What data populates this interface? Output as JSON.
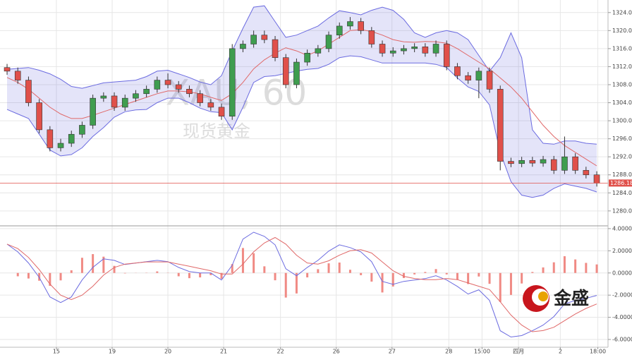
{
  "chart_data": [
    {
      "type": "candlestick",
      "watermark_symbol": "XAU, 60",
      "watermark_name": "现货黄金",
      "x": [
        0,
        1,
        2,
        3,
        4,
        5,
        6,
        7,
        8,
        9,
        10,
        11,
        12,
        13,
        14,
        15,
        16,
        17,
        18,
        19,
        20,
        21,
        22,
        23,
        24,
        25,
        26,
        27,
        28,
        29,
        30,
        31,
        32,
        33,
        34,
        35,
        36,
        37,
        38,
        39,
        40,
        41,
        42,
        43,
        44,
        45,
        46,
        47,
        48,
        49,
        50,
        51,
        52,
        53,
        54,
        55
      ],
      "open": [
        1311.8,
        1311,
        1309,
        1304,
        1298,
        1294,
        1295,
        1297,
        1299,
        1305,
        1305.5,
        1303,
        1305,
        1306,
        1307,
        1309,
        1308,
        1307,
        1306,
        1304,
        1303,
        1301,
        1316,
        1317,
        1319,
        1318,
        1314,
        1308,
        1313,
        1315,
        1316,
        1319,
        1321,
        1322,
        1320,
        1317,
        1315,
        1315.5,
        1316,
        1316.4,
        1315,
        1317,
        1312,
        1310,
        1309,
        1311,
        1307,
        1291,
        1290.5,
        1291.2,
        1290.6,
        1291.4,
        1289,
        1292,
        1289,
        1288
      ],
      "high": [
        1312.6,
        1311.8,
        1309.8,
        1304.8,
        1298.8,
        1296,
        1297.8,
        1299.8,
        1305.8,
        1306.3,
        1306.3,
        1305.8,
        1306.8,
        1307.8,
        1309.8,
        1310.5,
        1308.8,
        1307.8,
        1306.8,
        1304.8,
        1303.8,
        1317,
        1317.8,
        1320,
        1320,
        1318.8,
        1314.8,
        1313.8,
        1315.8,
        1316.8,
        1319.8,
        1321.8,
        1323,
        1322.8,
        1320.8,
        1317.8,
        1316.3,
        1316.8,
        1317.2,
        1317.2,
        1317.8,
        1317.8,
        1312.8,
        1310.8,
        1311.8,
        1311.8,
        1307.8,
        1291.8,
        1292,
        1292,
        1292.2,
        1292.2,
        1296.5,
        1292.8,
        1289.8,
        1288.8
      ],
      "low": [
        1310.2,
        1308.2,
        1303.2,
        1297.2,
        1293.2,
        1293.2,
        1294.2,
        1296.2,
        1298.2,
        1304.2,
        1302.2,
        1302.2,
        1304.2,
        1305.2,
        1306.2,
        1307.2,
        1306.2,
        1305.2,
        1303.2,
        1302.2,
        1300.2,
        1300.2,
        1315.2,
        1316.2,
        1317.2,
        1313.2,
        1307.2,
        1307.2,
        1312.2,
        1314.2,
        1315.2,
        1318.2,
        1320.2,
        1319.2,
        1316.2,
        1314.2,
        1314.2,
        1314.7,
        1315.2,
        1314.2,
        1314.2,
        1311.2,
        1309.2,
        1308.2,
        1305,
        1306.2,
        1289,
        1289.7,
        1289.7,
        1289.8,
        1289.8,
        1288.2,
        1288.2,
        1288.2,
        1287.2,
        1285.4
      ],
      "close": [
        1311,
        1309,
        1304,
        1298,
        1294,
        1295,
        1297,
        1299,
        1305,
        1305.5,
        1303,
        1305,
        1306,
        1307,
        1309,
        1308,
        1307,
        1306,
        1304,
        1303,
        1301,
        1316,
        1317,
        1319,
        1318,
        1314,
        1308,
        1313,
        1315,
        1316,
        1319,
        1321,
        1322,
        1320,
        1317,
        1315,
        1315.5,
        1316,
        1316.4,
        1315,
        1317,
        1312,
        1310,
        1309,
        1311,
        1307,
        1291,
        1290.5,
        1291.2,
        1290.6,
        1291.4,
        1289,
        1292,
        1289,
        1288,
        1286.18
      ],
      "upper_band": [
        1311.4,
        1311.6,
        1311.8,
        1311.2,
        1310.4,
        1309.2,
        1307.6,
        1307.2,
        1307.8,
        1308.4,
        1308.6,
        1308.8,
        1309,
        1309.8,
        1311,
        1311.2,
        1310.4,
        1309.6,
        1308.6,
        1308,
        1310,
        1315.5,
        1320.5,
        1325.2,
        1325.5,
        1322,
        1318.5,
        1319,
        1320,
        1321,
        1322.8,
        1324.4,
        1324,
        1323.5,
        1324.5,
        1325.2,
        1324.5,
        1322.5,
        1319.5,
        1318.5,
        1319.5,
        1320,
        1319.5,
        1318,
        1314.5,
        1311,
        1314,
        1319.5,
        1314,
        1298,
        1295,
        1294.8,
        1295.5,
        1295.5,
        1295,
        1294.8
      ],
      "middle_band": [
        1309.6,
        1308.5,
        1307,
        1305,
        1303,
        1301.5,
        1300.5,
        1300.5,
        1301.2,
        1302,
        1302.8,
        1303.6,
        1304.4,
        1305.2,
        1306,
        1306.6,
        1306.6,
        1306.4,
        1306,
        1305.2,
        1304.5,
        1306,
        1308.5,
        1311.5,
        1313.5,
        1315,
        1316.2,
        1315.5,
        1314.5,
        1315.5,
        1317,
        1318.5,
        1320,
        1320.2,
        1319.8,
        1319,
        1318,
        1317.5,
        1317.4,
        1317.6,
        1317.5,
        1317.2,
        1316,
        1314.5,
        1313,
        1311.5,
        1309.5,
        1307.5,
        1305,
        1302,
        1299,
        1296.5,
        1294.5,
        1293,
        1291.5,
        1290
      ],
      "lower_band": [
        1302.5,
        1301.5,
        1300.5,
        1297,
        1293.5,
        1292.2,
        1292.5,
        1294,
        1296.5,
        1298.5,
        1300.8,
        1302,
        1302.4,
        1302.5,
        1304,
        1305,
        1305,
        1304,
        1302.8,
        1302,
        1301.8,
        1298,
        1303,
        1308.5,
        1309.8,
        1310,
        1310.5,
        1311,
        1311.4,
        1311.6,
        1312.5,
        1314,
        1314.4,
        1314.2,
        1313.5,
        1312.8,
        1312.8,
        1312.8,
        1312.8,
        1312.8,
        1312.5,
        1311.8,
        1309.5,
        1307.5,
        1306.5,
        1303.5,
        1293,
        1286.5,
        1283.5,
        1283,
        1283.5,
        1285,
        1286,
        1285.5,
        1285,
        1284.2
      ],
      "up_color": "#3f9d4f",
      "down_color": "#e0504a",
      "band_color": "#6b6be0",
      "middle_color": "#e06868",
      "last_price": 1286.18,
      "last_price_color": "#e0504a",
      "xlim": [
        -0.66,
        56.05
      ],
      "ylim": [
        1277,
        1326
      ],
      "yticks": [
        {
          "value": 1324,
          "label": "1324.00"
        },
        {
          "value": 1320,
          "label": "1320.00"
        },
        {
          "value": 1316,
          "label": "1316.00"
        },
        {
          "value": 1312,
          "label": "1312.00"
        },
        {
          "value": 1308,
          "label": "1308.00"
        },
        {
          "value": 1304,
          "label": "1304.00"
        },
        {
          "value": 1300,
          "label": "1300.00"
        },
        {
          "value": 1296,
          "label": "1296.00"
        },
        {
          "value": 1292,
          "label": "1292.00"
        },
        {
          "value": 1288,
          "label": "1288.00"
        },
        {
          "value": 1284,
          "label": "1284.00"
        },
        {
          "value": 1280,
          "label": "1280.00"
        }
      ],
      "grid": true
    },
    {
      "type": "macd",
      "x": [
        0,
        1,
        2,
        3,
        4,
        5,
        6,
        7,
        8,
        9,
        10,
        11,
        12,
        13,
        14,
        15,
        16,
        17,
        18,
        19,
        20,
        21,
        22,
        23,
        24,
        25,
        26,
        27,
        28,
        29,
        30,
        31,
        32,
        33,
        34,
        35,
        36,
        37,
        38,
        39,
        40,
        41,
        42,
        43,
        44,
        45,
        46,
        47,
        48,
        49,
        50,
        51,
        52,
        53,
        54,
        55
      ],
      "dif": [
        2.6,
        1.9,
        0.9,
        -0.4,
        -2.16,
        -2.67,
        -2.16,
        -0.63,
        0.5,
        1.27,
        1.14,
        0.76,
        0.89,
        1.02,
        1.14,
        1.02,
        0.5,
        0.13,
        0,
        0,
        -0.63,
        0.7,
        3.05,
        3.68,
        3.3,
        2.54,
        0.38,
        -0.25,
        0.5,
        1.14,
        1.97,
        2.54,
        2.29,
        1.9,
        1.02,
        -0.76,
        -1.02,
        -0.76,
        -0.63,
        -0.51,
        -0.25,
        -0.63,
        -1.21,
        -1.9,
        -1.52,
        -2.48,
        -5.21,
        -5.78,
        -5.65,
        -5.21,
        -4.7,
        -3.94,
        -2.79,
        -2.48,
        -2.29,
        -2.03
      ],
      "dea": [
        2.6,
        2.2,
        1.4,
        0.3,
        -1,
        -2,
        -2.4,
        -2,
        -1.2,
        -0.2,
        0.5,
        0.8,
        0.9,
        1,
        1,
        1,
        0.8,
        0.6,
        0.4,
        0.2,
        -0.1,
        -0.1,
        0.8,
        1.9,
        2.7,
        3.2,
        2.6,
        1.6,
        0.9,
        0.8,
        1.1,
        1.6,
        2,
        2.1,
        1.8,
        1,
        0.2,
        -0.3,
        -0.5,
        -0.6,
        -0.6,
        -0.5,
        -0.6,
        -0.9,
        -1.2,
        -1.5,
        -2.6,
        -3.8,
        -4.7,
        -5.3,
        -5.2,
        -4.9,
        -4.3,
        -3.7,
        -3.2,
        -2.8
      ],
      "histogram": [
        0,
        -0.3,
        -0.5,
        -0.7,
        -1.16,
        -0.67,
        0.24,
        1.37,
        1.7,
        1.47,
        0.64,
        -0.04,
        -0.01,
        0.02,
        0.14,
        0.02,
        -0.3,
        -0.47,
        -0.4,
        -0.2,
        -0.53,
        0.8,
        2.25,
        1.78,
        0.6,
        -0.66,
        -2.22,
        -1.85,
        -0.4,
        0.34,
        0.87,
        0.94,
        0.29,
        -0.2,
        -0.78,
        -1.76,
        -1.22,
        -0.46,
        -0.13,
        0.09,
        0.35,
        -0.13,
        -0.61,
        -1,
        -0.32,
        -0.98,
        -2.61,
        -1.98,
        -0.95,
        0.09,
        0.5,
        0.96,
        1.51,
        1.22,
        0.91,
        0.77
      ],
      "dif_color": "#6b6be0",
      "dea_color": "#e06868",
      "histogram_color": "#f08a84",
      "xlim": [
        -0.66,
        56.05
      ],
      "ylim": [
        -6.7,
        4.25
      ],
      "xticks": [
        {
          "value": 4.6,
          "label": "15"
        },
        {
          "value": 9.8,
          "label": "19"
        },
        {
          "value": 15.0,
          "label": "20"
        },
        {
          "value": 20.2,
          "label": "21"
        },
        {
          "value": 25.5,
          "label": "22"
        },
        {
          "value": 30.7,
          "label": "26"
        },
        {
          "value": 35.9,
          "label": "27"
        },
        {
          "value": 41.2,
          "label": "28"
        },
        {
          "value": 44.3,
          "label": "15:00"
        },
        {
          "value": 47.7,
          "label": "四月"
        },
        {
          "value": 51.6,
          "label": "2"
        },
        {
          "value": 55.1,
          "label": "18:00"
        }
      ],
      "yticks": [
        {
          "value": 4,
          "label": "4.0000"
        },
        {
          "value": 2,
          "label": "2.0000"
        },
        {
          "value": 0,
          "label": "0.0000"
        },
        {
          "value": -2,
          "label": "-2.0000"
        },
        {
          "value": -4,
          "label": "-4.0000"
        },
        {
          "value": -6,
          "label": "-6.0000"
        }
      ],
      "grid": true
    }
  ],
  "logo": "金盛"
}
